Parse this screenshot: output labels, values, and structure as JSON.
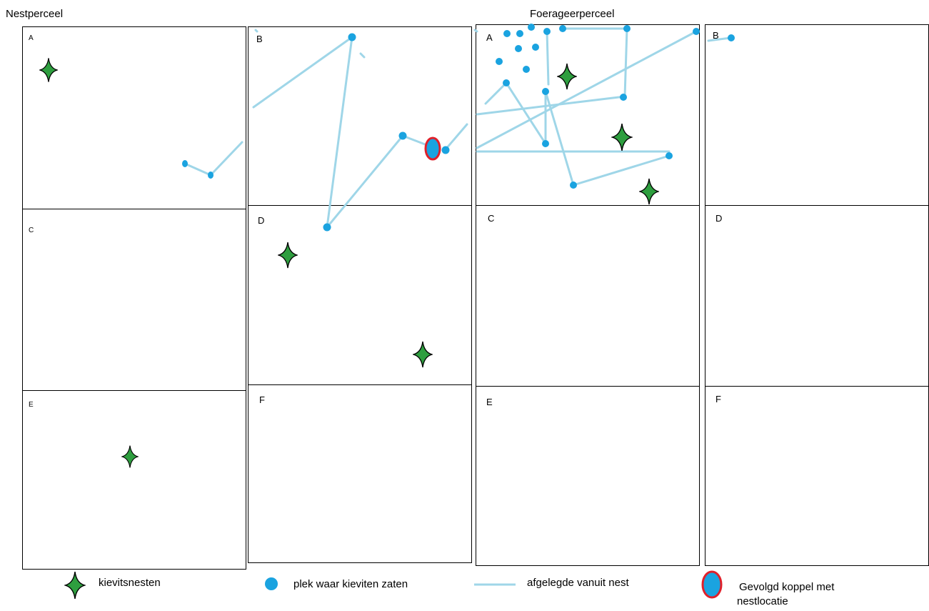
{
  "titles": {
    "nest": "Nestperceel",
    "forage": "Foerageerperceel"
  },
  "cells": {
    "col1_A": "A",
    "col1_C": "C",
    "col1_E": "E",
    "col2_B": "B",
    "col2_D": "D",
    "col2_F": "F",
    "col3_A": "A",
    "col3_C": "C",
    "col3_E": "E",
    "col4_B": "B",
    "col4_D": "D",
    "col4_F": "F"
  },
  "legend": {
    "nests": "kievitsnesten",
    "spots": "plek waar kieviten zaten",
    "track": "afgelegde vanuit nest",
    "pair_line1": "Gevolgd koppel met",
    "pair_line2": "nestlocatie"
  },
  "colors": {
    "star_fill": "#2e9e3f",
    "dot": "#1aa3e0",
    "track": "#9fd6e8",
    "pair_outline": "#e0202a"
  },
  "icons": {
    "nest": "four-point-star-icon",
    "spot": "blue-dot-icon",
    "track": "line-icon",
    "pair": "red-outlined-oval-icon"
  }
}
